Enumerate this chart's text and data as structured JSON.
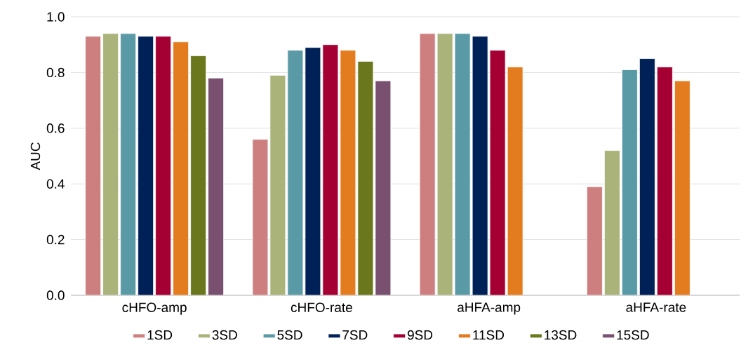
{
  "chart_data": {
    "type": "bar",
    "ylabel": "AUC",
    "categories": [
      "cHFO-amp",
      "cHFO-rate",
      "aHFA-amp",
      "aHFA-rate"
    ],
    "series": [
      {
        "name": "1SD",
        "color": "#cd7f7f",
        "values": [
          0.93,
          0.56,
          0.94,
          0.39
        ]
      },
      {
        "name": "3SD",
        "color": "#a9b37a",
        "values": [
          0.94,
          0.79,
          0.94,
          0.52
        ]
      },
      {
        "name": "5SD",
        "color": "#5a9aa6",
        "values": [
          0.94,
          0.88,
          0.94,
          0.81
        ]
      },
      {
        "name": "7SD",
        "color": "#002157",
        "values": [
          0.93,
          0.89,
          0.93,
          0.85
        ]
      },
      {
        "name": "9SD",
        "color": "#a50034",
        "values": [
          0.93,
          0.9,
          0.88,
          0.82
        ]
      },
      {
        "name": "11SD",
        "color": "#e37c1e",
        "values": [
          0.91,
          0.88,
          0.82,
          0.77
        ]
      },
      {
        "name": "13SD",
        "color": "#6a771d",
        "values": [
          0.86,
          0.84,
          null,
          null
        ]
      },
      {
        "name": "15SD",
        "color": "#7a5070",
        "values": [
          0.78,
          0.77,
          null,
          null
        ]
      }
    ],
    "ylim": [
      0,
      1.0
    ],
    "yticks": [
      {
        "value": 0,
        "label": "0.0"
      },
      {
        "value": 0.2,
        "label": "0.2"
      },
      {
        "value": 0.4,
        "label": "0.4"
      },
      {
        "value": 0.6,
        "label": "0.6"
      },
      {
        "value": 0.8,
        "label": "0.8"
      },
      {
        "value": 1.0,
        "label": "1.0"
      }
    ],
    "grid": "y",
    "legend": "bottom"
  }
}
